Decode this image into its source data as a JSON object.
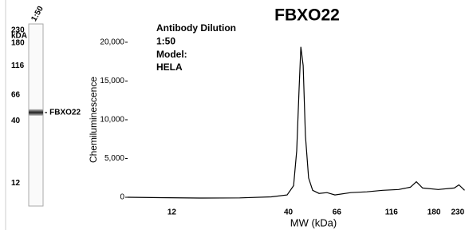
{
  "chart_data": [
    {
      "type": "blot",
      "lane_label": "1:50",
      "ylabel": "kDA",
      "markers": [
        230,
        180,
        116,
        66,
        40,
        12
      ],
      "ylim": [
        260,
        7.7
      ],
      "log_scale": true,
      "band": {
        "name": "- FBXO22",
        "mw": 47
      }
    },
    {
      "type": "line",
      "title": "FBXO22",
      "xlabel": "MW (kDa)",
      "ylabel": "Chemiluminescence",
      "annotations": [
        "Antibody Dilution",
        "1:50",
        "Model:",
        "HELA"
      ],
      "x": [
        7.6,
        10.6,
        16.0,
        24.2,
        33.5,
        39.5,
        42.2,
        43.6,
        44.7,
        45.5,
        46.6,
        47.7,
        49.3,
        51.4,
        54.9,
        59.6,
        64.7,
        76.2,
        89.9,
        106,
        125,
        141,
        150,
        160,
        188,
        222,
        233,
        247
      ],
      "series": [
        {
          "name": "HELA",
          "color": "#000000",
          "values": [
            0,
            -50,
            -100,
            -80,
            50,
            300,
            1500,
            6000,
            14000,
            19400,
            17000,
            8000,
            2500,
            900,
            500,
            600,
            300,
            600,
            700,
            900,
            1000,
            1300,
            2000,
            1200,
            1000,
            1200,
            1600,
            900
          ]
        }
      ],
      "xlim": [
        7.6,
        248
      ],
      "xscale": "log",
      "xticks": [
        12,
        40,
        66,
        116,
        180,
        230
      ],
      "ylim": [
        -250,
        21000
      ],
      "yticks": [
        {
          "value": 0,
          "label": "0"
        },
        {
          "value": 5000,
          "label": "5,000"
        },
        {
          "value": 10000,
          "label": "10,000"
        },
        {
          "value": 15000,
          "label": "15,000"
        },
        {
          "value": 20000,
          "label": "20,000"
        }
      ]
    }
  ]
}
